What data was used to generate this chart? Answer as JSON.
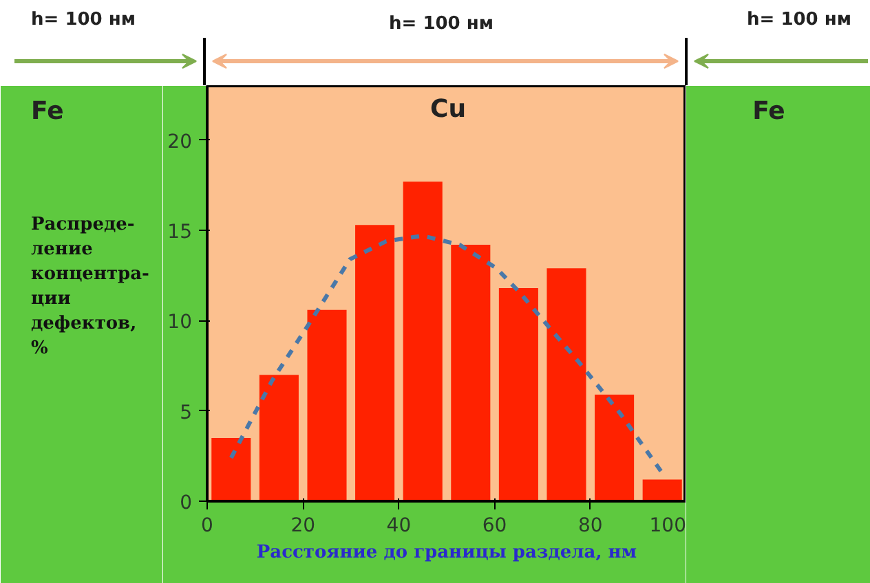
{
  "chart_data": {
    "type": "histogram",
    "xlabel": "Расстояние до границы раздела, нм",
    "ylabel": "Распреде-\nление\nконцентра-\nции\nдефектов,\n%",
    "annotations": [
      "h= 100 нм",
      "h= 100 нм",
      "h= 100 нм",
      "Fe",
      "Cu",
      "Fe"
    ],
    "bins": [
      0,
      10,
      20,
      30,
      40,
      50,
      60,
      70,
      80,
      90,
      100
    ],
    "series": [
      {
        "color": "#ff2200",
        "values": [
          3.5,
          7.0,
          10.6,
          15.3,
          17.7,
          14.2,
          11.8,
          12.9,
          5.9,
          1.2
        ]
      },
      {
        "type": "line",
        "color": "#4a78a8",
        "line_style": "dashed",
        "x": [
          5,
          13.6,
          21.2,
          29.8,
          37.4,
          45,
          52.7,
          60.4,
          65.1,
          71.8,
          77.6,
          86.1,
          95.7
        ],
        "values": [
          2.4,
          6.7,
          9.8,
          13.4,
          14.4,
          14.7,
          14.2,
          12.9,
          11.6,
          9.5,
          7.7,
          4.9,
          1.3
        ]
      }
    ],
    "xlim": [
      0,
      100
    ],
    "xticks": [
      0,
      20,
      40,
      60,
      80,
      100
    ],
    "ylim": [
      0,
      23
    ],
    "yticks": [
      0,
      5,
      10,
      15,
      20
    ],
    "grid": false
  }
}
